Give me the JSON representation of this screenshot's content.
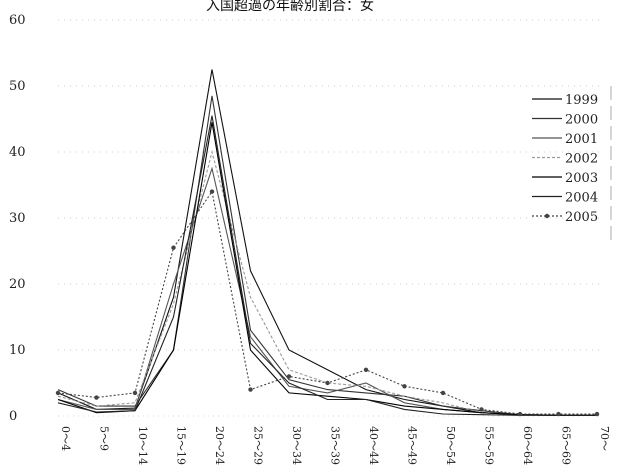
{
  "chart_data": {
    "type": "line",
    "title": "入国超過の年齢別割合：女",
    "xlabel": "",
    "ylabel": "",
    "categories": [
      "0～4",
      "5～9",
      "10～14",
      "15～19",
      "20～24",
      "25～29",
      "30～34",
      "35～39",
      "40～44",
      "45～49",
      "50～54",
      "55～59",
      "60～64",
      "65～69",
      "70～"
    ],
    "yticks": [
      "0",
      "10",
      "20",
      "30",
      "40",
      "50",
      "60"
    ],
    "ylim": [
      0,
      60
    ],
    "grid": true,
    "legend_position": "right",
    "series": [
      {
        "name": "1999",
        "color": "#111111",
        "dash": "",
        "marker": "none",
        "values": [
          3.5,
          1.0,
          1.2,
          18.0,
          52.5,
          22.0,
          10.0,
          7.0,
          4.0,
          2.5,
          1.5,
          0.5,
          0.2,
          0.1,
          0.1
        ]
      },
      {
        "name": "2000",
        "color": "#333333",
        "dash": "",
        "marker": "none",
        "values": [
          4.0,
          1.5,
          1.5,
          10.0,
          48.5,
          13.0,
          5.5,
          4.0,
          3.5,
          3.0,
          1.5,
          0.8,
          0.2,
          0.1,
          0.1
        ]
      },
      {
        "name": "2001",
        "color": "#555555",
        "dash": "",
        "marker": "none",
        "values": [
          2.5,
          1.0,
          1.0,
          20.0,
          37.5,
          12.0,
          4.5,
          3.5,
          5.0,
          2.0,
          1.0,
          0.5,
          0.2,
          0.1,
          0.1
        ]
      },
      {
        "name": "2002",
        "color": "#9a9a9a",
        "dash": "3 2",
        "marker": "none",
        "values": [
          3.0,
          1.5,
          2.0,
          17.0,
          40.0,
          18.0,
          7.0,
          5.0,
          4.5,
          3.0,
          2.0,
          0.5,
          0.2,
          0.1,
          0.1
        ]
      },
      {
        "name": "2003",
        "color": "#000000",
        "dash": "",
        "marker": "none",
        "values": [
          2.5,
          0.5,
          0.8,
          10.0,
          44.5,
          10.0,
          3.5,
          3.0,
          2.5,
          1.5,
          1.0,
          0.5,
          0.2,
          0.1,
          0.1
        ]
      },
      {
        "name": "2004",
        "color": "#222222",
        "dash": "",
        "marker": "none",
        "values": [
          2.0,
          0.6,
          0.8,
          15.0,
          45.5,
          11.0,
          5.0,
          2.5,
          2.5,
          1.0,
          0.3,
          0.2,
          0.1,
          0.1,
          0.1
        ]
      },
      {
        "name": "2005",
        "color": "#444444",
        "dash": "2 2",
        "marker": "circle",
        "values": [
          3.5,
          2.8,
          3.5,
          25.5,
          34.0,
          4.0,
          6.0,
          5.0,
          7.0,
          4.5,
          3.5,
          1.0,
          0.3,
          0.3,
          0.3
        ]
      }
    ]
  }
}
